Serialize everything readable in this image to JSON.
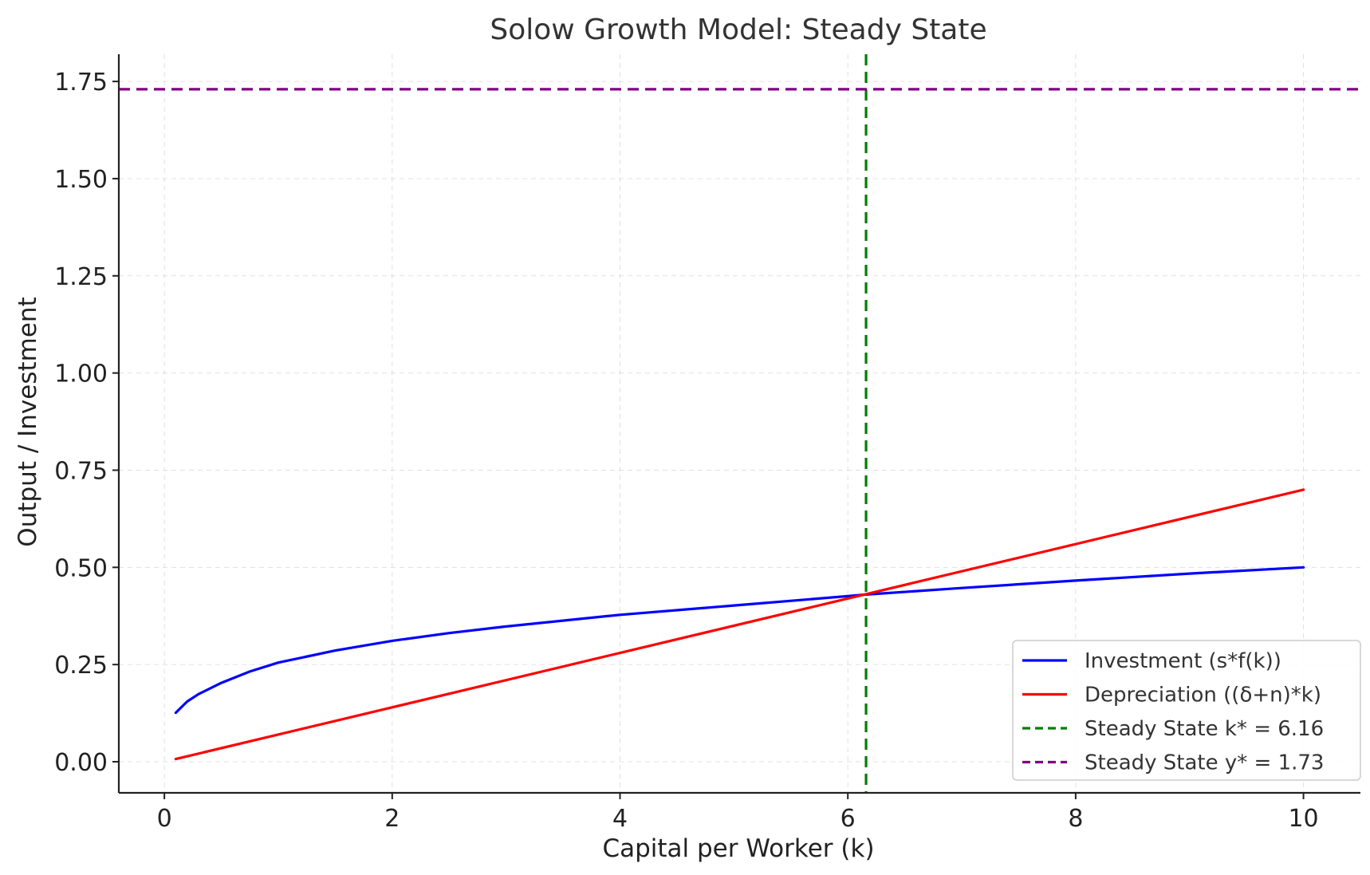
{
  "chart_data": {
    "type": "line",
    "title": "Solow Growth Model: Steady State",
    "xlabel": "Capital per Worker (k)",
    "ylabel": "Output / Investment",
    "xlim": [
      -0.4,
      10.5
    ],
    "ylim": [
      -0.08,
      1.82
    ],
    "x_ticks": [
      0,
      2,
      4,
      6,
      8,
      10
    ],
    "x_tick_labels": [
      "0",
      "2",
      "4",
      "6",
      "8",
      "10"
    ],
    "y_ticks": [
      0.0,
      0.25,
      0.5,
      0.75,
      1.0,
      1.25,
      1.5,
      1.75
    ],
    "y_tick_labels": [
      "0.00",
      "0.25",
      "0.50",
      "0.75",
      "1.00",
      "1.25",
      "1.50",
      "1.75"
    ],
    "grid": true,
    "legend_position": "lower right",
    "series": [
      {
        "name": "Investment (s*f(k))",
        "color": "#0000ff",
        "style": "solid",
        "x": [
          0.1,
          0.2,
          0.3,
          0.5,
          0.75,
          1.0,
          1.5,
          2.0,
          2.5,
          3.0,
          4.0,
          5.0,
          6.0,
          6.16,
          7.0,
          8.0,
          9.0,
          10.0
        ],
        "y": [
          0.126,
          0.155,
          0.174,
          0.203,
          0.232,
          0.255,
          0.286,
          0.311,
          0.331,
          0.348,
          0.378,
          0.402,
          0.426,
          0.43,
          0.447,
          0.466,
          0.484,
          0.5
        ]
      },
      {
        "name": "Depreciation ((δ+n)*k)",
        "color": "#ff0000",
        "style": "solid",
        "x": [
          0.1,
          10.0
        ],
        "y": [
          0.007,
          0.7
        ]
      },
      {
        "name": "Steady State k* = 6.16",
        "color": "#007f00",
        "style": "dashed",
        "orientation": "vertical",
        "value": 6.16
      },
      {
        "name": "Steady State y* = 1.73",
        "color": "#800080",
        "style": "dashed",
        "orientation": "horizontal",
        "value": 1.73
      }
    ]
  }
}
